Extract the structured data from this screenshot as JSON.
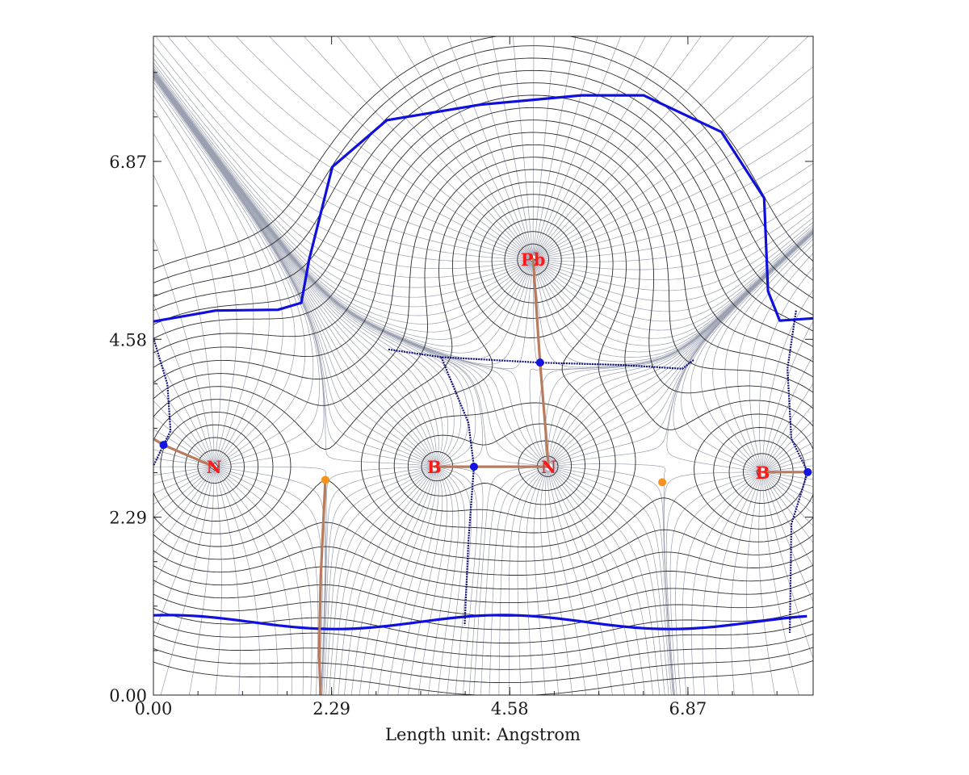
{
  "chart_data": {
    "type": "contour",
    "xlabel": "Length unit: Angstrom",
    "ylabel": "",
    "xlim": [
      0.0,
      8.48
    ],
    "ylim": [
      0.0,
      8.48
    ],
    "x_ticks": [
      "0.00",
      "2.29",
      "4.58",
      "6.87"
    ],
    "y_ticks": [
      "0.00",
      "2.29",
      "4.58",
      "6.87"
    ],
    "atoms": [
      {
        "label": "N",
        "x": 0.78,
        "y": 2.94
      },
      {
        "label": "B",
        "x": 3.61,
        "y": 2.94
      },
      {
        "label": "N",
        "x": 5.08,
        "y": 2.94
      },
      {
        "label": "Pb",
        "x": 4.88,
        "y": 5.61
      },
      {
        "label": "B",
        "x": 7.83,
        "y": 2.87
      }
    ],
    "critical_points_bond": [
      {
        "x": 0.13,
        "y": 3.22
      },
      {
        "x": 4.12,
        "y": 2.94
      },
      {
        "x": 4.97,
        "y": 4.28
      },
      {
        "x": 8.41,
        "y": 2.87
      }
    ],
    "critical_points_ring": [
      {
        "x": 2.21,
        "y": 2.77
      },
      {
        "x": 6.54,
        "y": 2.74
      }
    ],
    "colors": {
      "contour": "#2b2b2b",
      "gradient": "#9aa0b0",
      "envelope": "#1010dd",
      "basin_boundary": "#10107a",
      "bond_path": "#b87b5e",
      "bond_cp": "#1414e0",
      "ring_cp": "#f5921e",
      "atom_label": "#ff1a1a"
    }
  }
}
